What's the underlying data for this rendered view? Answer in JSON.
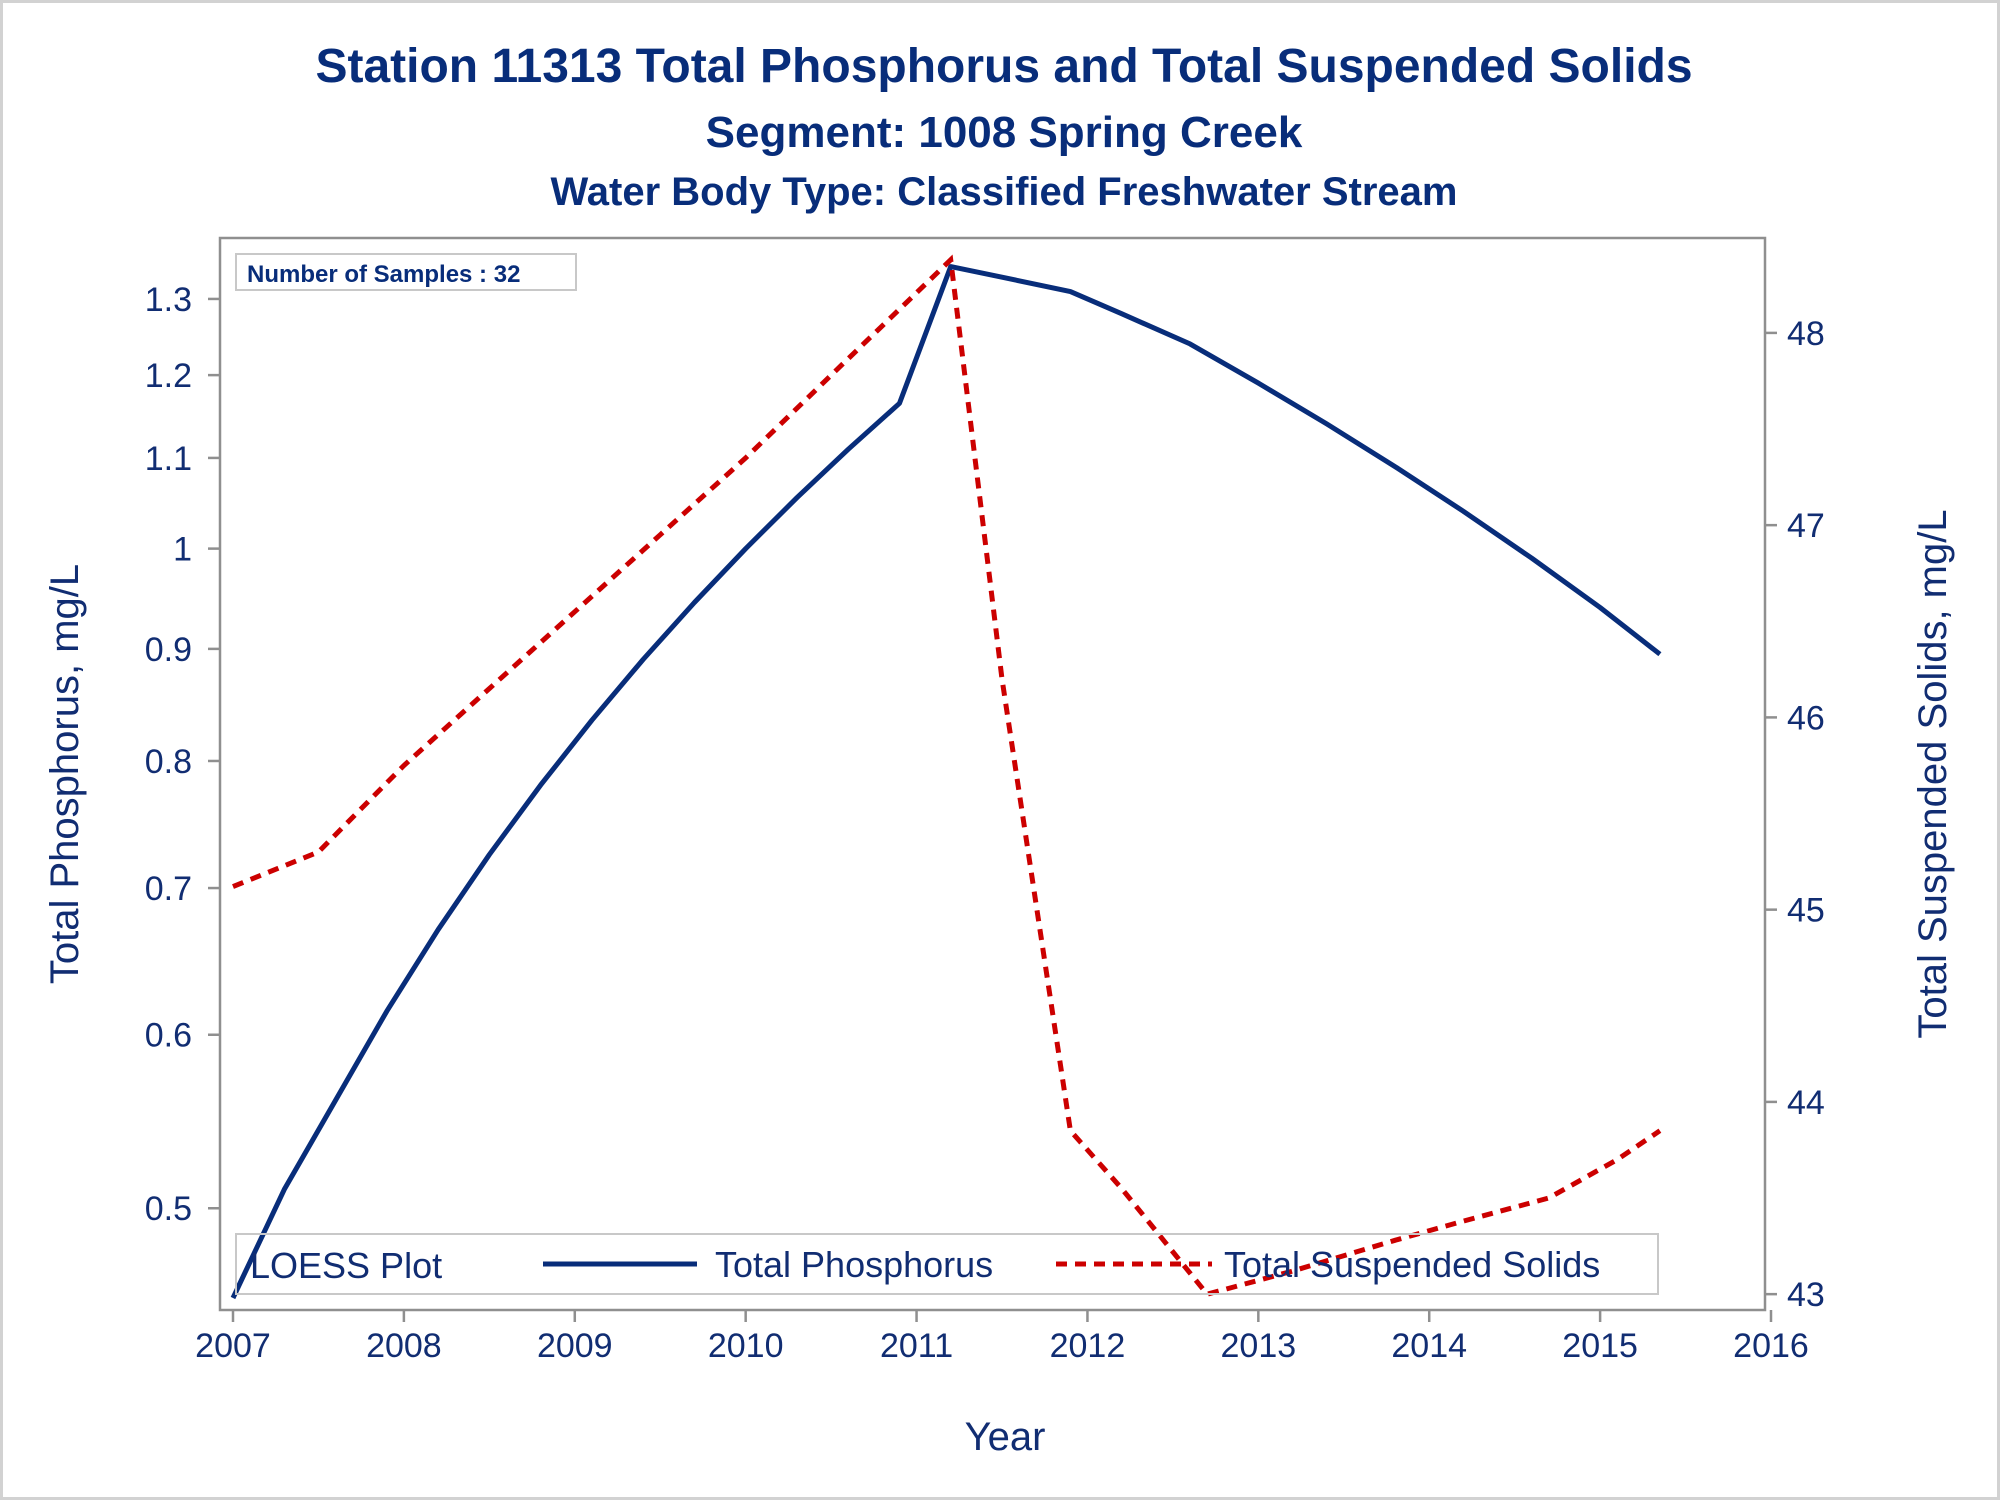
{
  "titles": {
    "line1": "Station 11313  Total Phosphorus and Total Suspended Solids",
    "line2": "Segment: 1008  Spring Creek",
    "line3": "Water Body Type: Classified Freshwater Stream"
  },
  "inset": "Number of Samples : 32",
  "legend": {
    "title": "LOESS Plot",
    "items": [
      "Total Phosphorus",
      "Total Suspended Solids"
    ]
  },
  "colors": {
    "text": "#112d72",
    "phosphorus": "#082d7a",
    "tss": "#cc0000",
    "axis": "#8f8f8f"
  },
  "chart_data": {
    "type": "line",
    "xlabel": "Year",
    "ylabel_left": "Total Phosphorus, mg/L",
    "ylabel_right": "Total Suspended Solids, mg/L",
    "left_axis_scale": "log",
    "xlim": [
      2007,
      2016
    ],
    "ylim_left": [
      0.455,
      1.36
    ],
    "ylim_right": [
      42.98,
      48.4
    ],
    "x_ticks": [
      "2007",
      "2008",
      "2009",
      "2010",
      "2011",
      "2012",
      "2013",
      "2014",
      "2015",
      "2016"
    ],
    "y_ticks_left": [
      "0.5",
      "0.6",
      "0.7",
      "0.8",
      "0.9",
      "1",
      "1.1",
      "1.2",
      "1.3"
    ],
    "y_ticks_right": [
      "43",
      "44",
      "45",
      "46",
      "47",
      "48"
    ],
    "legend_position": "bottom-inside",
    "grid": false,
    "series": [
      {
        "name": "Total Phosphorus",
        "axis": "left",
        "style": "solid",
        "x": [
          2007.0,
          2007.3,
          2007.6,
          2007.9,
          2008.2,
          2008.5,
          2008.8,
          2009.1,
          2009.4,
          2009.7,
          2010.0,
          2010.3,
          2010.6,
          2010.9,
          2011.2,
          2011.5,
          2011.9,
          2012.2,
          2012.6,
          2013.0,
          2013.4,
          2013.8,
          2014.2,
          2014.6,
          2015.0,
          2015.35
        ],
        "y": [
          0.455,
          0.51,
          0.56,
          0.615,
          0.67,
          0.725,
          0.78,
          0.835,
          0.89,
          0.945,
          1.0,
          1.055,
          1.11,
          1.165,
          1.345,
          1.33,
          1.31,
          1.28,
          1.24,
          1.19,
          1.14,
          1.09,
          1.04,
          0.99,
          0.94,
          0.895
        ]
      },
      {
        "name": "Total Suspended Solids",
        "axis": "right",
        "style": "dashed",
        "x": [
          2007.0,
          2007.5,
          2008.0,
          2008.5,
          2009.0,
          2009.5,
          2010.0,
          2010.5,
          2011.2,
          2011.5,
          2011.9,
          2012.2,
          2012.7,
          2013.2,
          2013.8,
          2014.2,
          2014.7,
          2015.1,
          2015.35
        ],
        "y": [
          45.12,
          45.3,
          45.75,
          46.15,
          46.55,
          46.95,
          47.35,
          47.78,
          48.38,
          46.2,
          43.85,
          43.55,
          43.0,
          43.12,
          43.28,
          43.38,
          43.5,
          43.7,
          43.85
        ]
      }
    ]
  }
}
